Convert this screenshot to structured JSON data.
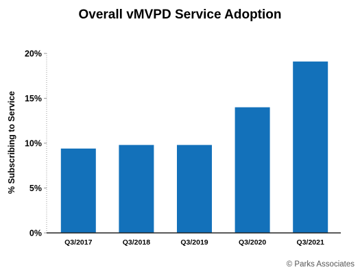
{
  "chart_data": {
    "type": "bar",
    "title": "Overall vMVPD Service Adoption",
    "ylabel": "% Subscribing to Service",
    "xlabel": "",
    "categories": [
      "Q3/2017",
      "Q3/2018",
      "Q3/2019",
      "Q3/2020",
      "Q3/2021"
    ],
    "values": [
      9.4,
      9.8,
      9.8,
      14.0,
      19.1
    ],
    "ylim": [
      0,
      20
    ],
    "yticks": [
      0,
      5,
      10,
      15,
      20
    ],
    "ytick_labels": [
      "0%",
      "5%",
      "10%",
      "15%",
      "20%"
    ],
    "grid": false,
    "bar_color": "#1371BA"
  },
  "footer": {
    "copyright": "© Parks Associates"
  }
}
